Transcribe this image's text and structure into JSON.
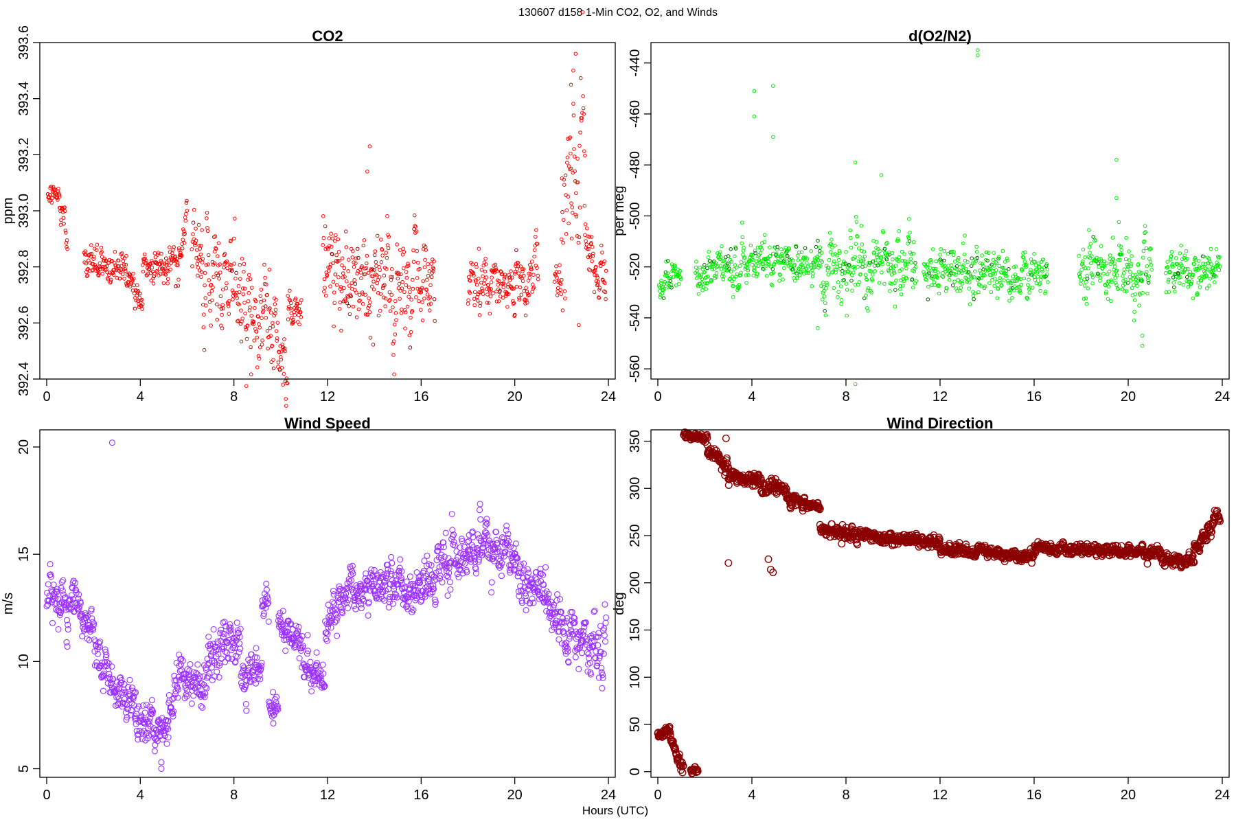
{
  "figure": {
    "suptitle": "130607   d158   1-Min CO2, O2, and Winds",
    "xlabel": "Hours (UTC)"
  },
  "chart_data": [
    {
      "id": "co2",
      "type": "scatter",
      "title": "CO2",
      "ylabel": "ppm",
      "xlabel": "Hours (UTC)",
      "color": "#ff0000",
      "xlim": [
        0,
        24
      ],
      "ylim": [
        392.4,
        393.6
      ],
      "xticks": [
        0,
        4,
        8,
        12,
        16,
        20,
        24
      ],
      "yticks": [
        392.4,
        392.6,
        392.8,
        393.0,
        393.2,
        393.4,
        393.6
      ],
      "ytick_labels": [
        "392.4",
        "392.6",
        "392.8",
        "393.0",
        "393.2",
        "393.4",
        "393.6"
      ],
      "segments": [
        {
          "t0": 0.05,
          "t1": 0.55,
          "start": 393.05,
          "end": 393.05,
          "noise": 0.02
        },
        {
          "t0": 0.55,
          "t1": 0.9,
          "start": 393.0,
          "end": 392.9,
          "noise": 0.03
        },
        {
          "t0": 1.6,
          "t1": 2.2,
          "start": 392.85,
          "end": 392.78,
          "noise": 0.03
        },
        {
          "t0": 2.2,
          "t1": 3.4,
          "start": 392.8,
          "end": 392.8,
          "noise": 0.03
        },
        {
          "t0": 3.4,
          "t1": 4.1,
          "start": 392.78,
          "end": 392.68,
          "noise": 0.03
        },
        {
          "t0": 4.1,
          "t1": 5.7,
          "start": 392.78,
          "end": 392.82,
          "noise": 0.03
        },
        {
          "t0": 5.7,
          "t1": 6.0,
          "start": 392.85,
          "end": 393.0,
          "noise": 0.03
        },
        {
          "t0": 6.2,
          "t1": 6.6,
          "start": 392.9,
          "end": 392.85,
          "noise": 0.04
        },
        {
          "t0": 6.6,
          "t1": 10.0,
          "start": 392.78,
          "end": 392.55,
          "noise": 0.09
        },
        {
          "t0": 10.0,
          "t1": 10.3,
          "start": 392.5,
          "end": 392.42,
          "noise": 0.06
        },
        {
          "t0": 10.3,
          "t1": 10.9,
          "start": 392.65,
          "end": 392.65,
          "noise": 0.03
        },
        {
          "t0": 11.8,
          "t1": 16.6,
          "start": 392.78,
          "end": 392.75,
          "noise": 0.09
        },
        {
          "t0": 18.0,
          "t1": 19.0,
          "start": 392.75,
          "end": 392.75,
          "noise": 0.05
        },
        {
          "t0": 19.0,
          "t1": 20.0,
          "start": 392.78,
          "end": 392.7,
          "noise": 0.04
        },
        {
          "t0": 20.0,
          "t1": 21.0,
          "start": 392.75,
          "end": 392.82,
          "noise": 0.05
        },
        {
          "t0": 21.7,
          "t1": 22.0,
          "start": 392.77,
          "end": 392.77,
          "noise": 0.03
        },
        {
          "t0": 22.0,
          "t1": 23.0,
          "start": 393.05,
          "end": 393.25,
          "noise": 0.16
        },
        {
          "t0": 23.0,
          "t1": 23.9,
          "start": 392.9,
          "end": 392.72,
          "noise": 0.06
        }
      ],
      "outliers": [
        {
          "x": 13.8,
          "y": 393.23
        },
        {
          "x": 13.7,
          "y": 393.14
        },
        {
          "x": 22.6,
          "y": 393.56
        },
        {
          "x": 22.5,
          "y": 393.5
        },
        {
          "x": 22.4,
          "y": 393.45
        },
        {
          "x": 6.5,
          "y": 392.95
        },
        {
          "x": 10.1,
          "y": 392.38
        }
      ]
    },
    {
      "id": "o2",
      "type": "scatter",
      "title": "d(O2/N2)",
      "ylabel": "per meg",
      "xlabel": "Hours (UTC)",
      "color": "#00ee00",
      "xlim": [
        0,
        24
      ],
      "ylim": [
        -564,
        -432
      ],
      "xticks": [
        0,
        4,
        8,
        12,
        16,
        20,
        24
      ],
      "yticks": [
        -560,
        -540,
        -520,
        -500,
        -480,
        -460,
        -440
      ],
      "ytick_labels": [
        "-560",
        "-540",
        "-520",
        "-500",
        "-480",
        "-460",
        "-440"
      ],
      "segments": [
        {
          "t0": 0.05,
          "t1": 1.0,
          "start": -526,
          "end": -524,
          "noise": 3
        },
        {
          "t0": 1.6,
          "t1": 6.4,
          "start": -521,
          "end": -518,
          "noise": 4
        },
        {
          "t0": 6.5,
          "t1": 11.0,
          "start": -520,
          "end": -518,
          "noise": 7
        },
        {
          "t0": 11.3,
          "t1": 16.6,
          "start": -522,
          "end": -521,
          "noise": 5
        },
        {
          "t0": 17.9,
          "t1": 21.0,
          "start": -520,
          "end": -524,
          "noise": 6
        },
        {
          "t0": 21.6,
          "t1": 23.9,
          "start": -522,
          "end": -521,
          "noise": 4
        }
      ],
      "outliers": [
        {
          "x": 4.1,
          "y": -451
        },
        {
          "x": 4.1,
          "y": -461
        },
        {
          "x": 4.9,
          "y": -449
        },
        {
          "x": 4.9,
          "y": -469
        },
        {
          "x": 13.6,
          "y": -435
        },
        {
          "x": 13.6,
          "y": -437
        },
        {
          "x": 8.4,
          "y": -566
        },
        {
          "x": 8.4,
          "y": -479
        },
        {
          "x": 9.5,
          "y": -484
        },
        {
          "x": 19.5,
          "y": -478
        },
        {
          "x": 19.5,
          "y": -493
        },
        {
          "x": 20.6,
          "y": -551
        },
        {
          "x": 20.6,
          "y": -547
        },
        {
          "x": 6.8,
          "y": -544
        }
      ]
    },
    {
      "id": "wind_speed",
      "type": "scatter",
      "title": "Wind Speed",
      "ylabel": "m/s",
      "xlabel": "Hours (UTC)",
      "color": "#9b30ff",
      "xlim": [
        0,
        24
      ],
      "ylim": [
        4.6,
        20.8
      ],
      "xticks": [
        0,
        4,
        8,
        12,
        16,
        20,
        24
      ],
      "yticks": [
        5,
        10,
        15,
        20
      ],
      "ytick_labels": [
        "5",
        "10",
        "15",
        "20"
      ],
      "segments": [
        {
          "t0": 0.0,
          "t1": 1.3,
          "start": 12.8,
          "end": 12.6,
          "noise": 0.6
        },
        {
          "t0": 1.3,
          "t1": 2.3,
          "start": 12.3,
          "end": 10.0,
          "noise": 0.5
        },
        {
          "t0": 2.3,
          "t1": 3.8,
          "start": 9.8,
          "end": 7.8,
          "noise": 0.5
        },
        {
          "t0": 3.8,
          "t1": 5.2,
          "start": 7.5,
          "end": 6.5,
          "noise": 0.5
        },
        {
          "t0": 5.2,
          "t1": 5.9,
          "start": 7.5,
          "end": 10.0,
          "noise": 0.5
        },
        {
          "t0": 5.9,
          "t1": 6.9,
          "start": 9.0,
          "end": 9.0,
          "noise": 0.6
        },
        {
          "t0": 6.9,
          "t1": 8.3,
          "start": 10.5,
          "end": 10.8,
          "noise": 0.6
        },
        {
          "t0": 8.3,
          "t1": 9.2,
          "start": 9.3,
          "end": 9.8,
          "noise": 0.6
        },
        {
          "t0": 9.2,
          "t1": 9.5,
          "start": 12.5,
          "end": 12.8,
          "noise": 0.5
        },
        {
          "t0": 9.5,
          "t1": 9.9,
          "start": 8.2,
          "end": 8.0,
          "noise": 0.5
        },
        {
          "t0": 9.9,
          "t1": 10.9,
          "start": 11.5,
          "end": 11.0,
          "noise": 0.4
        },
        {
          "t0": 10.9,
          "t1": 11.9,
          "start": 10.3,
          "end": 8.8,
          "noise": 0.5
        },
        {
          "t0": 11.9,
          "t1": 12.8,
          "start": 11.5,
          "end": 13.6,
          "noise": 0.5
        },
        {
          "t0": 12.8,
          "t1": 16.0,
          "start": 13.5,
          "end": 13.3,
          "noise": 0.5
        },
        {
          "t0": 16.0,
          "t1": 18.5,
          "start": 13.5,
          "end": 15.5,
          "noise": 0.6
        },
        {
          "t0": 18.5,
          "t1": 20.0,
          "start": 15.5,
          "end": 14.8,
          "noise": 0.6
        },
        {
          "t0": 20.0,
          "t1": 22.2,
          "start": 14.5,
          "end": 11.5,
          "noise": 0.6
        },
        {
          "t0": 22.2,
          "t1": 23.9,
          "start": 11.2,
          "end": 10.8,
          "noise": 0.7
        }
      ],
      "outliers": [
        {
          "x": 2.8,
          "y": 20.2
        },
        {
          "x": 4.9,
          "y": 5.0
        },
        {
          "x": 4.9,
          "y": 5.3
        },
        {
          "x": 4.5,
          "y": 8.2
        }
      ]
    },
    {
      "id": "wind_direction",
      "type": "scatter",
      "title": "Wind Direction",
      "ylabel": "deg",
      "xlabel": "Hours (UTC)",
      "color": "#8b0000",
      "xlim": [
        0,
        24
      ],
      "ylim": [
        -6,
        362
      ],
      "xticks": [
        0,
        4,
        8,
        12,
        16,
        20,
        24
      ],
      "yticks": [
        0,
        50,
        100,
        150,
        200,
        250,
        300,
        350
      ],
      "ytick_labels": [
        "0",
        "50",
        "100",
        "150",
        "200",
        "250",
        "300",
        "350"
      ],
      "segments": [
        {
          "t0": 0.0,
          "t1": 0.5,
          "start": 40,
          "end": 44,
          "noise": 2
        },
        {
          "t0": 0.5,
          "t1": 1.1,
          "start": 38,
          "end": 3,
          "noise": 4
        },
        {
          "t0": 1.4,
          "t1": 1.7,
          "start": 2,
          "end": 0,
          "noise": 2
        },
        {
          "t0": 1.1,
          "t1": 2.1,
          "start": 357,
          "end": 354,
          "noise": 2
        },
        {
          "t0": 2.1,
          "t1": 3.0,
          "start": 345,
          "end": 318,
          "noise": 4
        },
        {
          "t0": 3.0,
          "t1": 4.4,
          "start": 312,
          "end": 305,
          "noise": 4
        },
        {
          "t0": 4.4,
          "t1": 5.5,
          "start": 300,
          "end": 298,
          "noise": 4
        },
        {
          "t0": 5.5,
          "t1": 6.5,
          "start": 288,
          "end": 280,
          "noise": 4
        },
        {
          "t0": 6.5,
          "t1": 6.9,
          "start": 280,
          "end": 280,
          "noise": 2
        },
        {
          "t0": 6.9,
          "t1": 8.5,
          "start": 256,
          "end": 248,
          "noise": 4
        },
        {
          "t0": 8.5,
          "t1": 12.0,
          "start": 250,
          "end": 243,
          "noise": 3
        },
        {
          "t0": 12.0,
          "t1": 16.0,
          "start": 236,
          "end": 228,
          "noise": 3
        },
        {
          "t0": 16.0,
          "t1": 21.5,
          "start": 236,
          "end": 232,
          "noise": 3
        },
        {
          "t0": 21.5,
          "t1": 22.8,
          "start": 225,
          "end": 223,
          "noise": 3
        },
        {
          "t0": 22.8,
          "t1": 23.9,
          "start": 235,
          "end": 272,
          "noise": 4
        }
      ],
      "outliers": [
        {
          "x": 2.9,
          "y": 353
        },
        {
          "x": 3.0,
          "y": 221
        },
        {
          "x": 4.7,
          "y": 225
        },
        {
          "x": 4.8,
          "y": 214
        },
        {
          "x": 4.9,
          "y": 211
        },
        {
          "x": 5.0,
          "y": 310
        }
      ]
    }
  ]
}
